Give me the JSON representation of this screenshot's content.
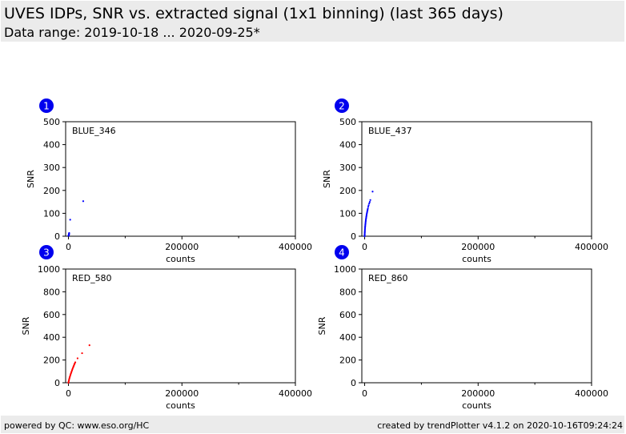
{
  "header": {
    "title": "UVES IDPs, SNR vs. extracted signal (1x1 binning) (last 365 days)",
    "subtitle": "Data range: 2019-10-18 ... 2020-09-25*"
  },
  "footer": {
    "left": "powered by QC: www.eso.org/HC",
    "right": "created by trendPlotter v4.1.2 on 2020-10-16T09:24:24"
  },
  "chart_data": [
    {
      "type": "scatter",
      "badge": "1",
      "label": "BLUE_346",
      "xlabel": "counts",
      "ylabel": "SNR",
      "xlim": [
        -5000,
        400000
      ],
      "ylim": [
        0,
        500
      ],
      "xticks": [
        0,
        200000,
        400000
      ],
      "xtick_labels": [
        "0",
        "200000",
        "400000"
      ],
      "yticks": [
        0,
        100,
        200,
        300,
        400,
        500
      ],
      "ytick_labels": [
        "0",
        "100",
        "200",
        "300",
        "400",
        "500"
      ],
      "color": "#0000ff",
      "points": [
        [
          0,
          2
        ],
        [
          300,
          4
        ],
        [
          500,
          6
        ],
        [
          700,
          8
        ],
        [
          900,
          10
        ],
        [
          1000,
          12
        ],
        [
          1200,
          14
        ],
        [
          1100,
          9
        ],
        [
          800,
          5
        ],
        [
          3000,
          72
        ],
        [
          26000,
          153
        ]
      ]
    },
    {
      "type": "scatter",
      "badge": "2",
      "label": "BLUE_437",
      "xlabel": "counts",
      "ylabel": "SNR",
      "xlim": [
        -5000,
        400000
      ],
      "ylim": [
        0,
        500
      ],
      "xticks": [
        0,
        200000,
        400000
      ],
      "xtick_labels": [
        "0",
        "200000",
        "400000"
      ],
      "yticks": [
        0,
        100,
        200,
        300,
        400,
        500
      ],
      "ytick_labels": [
        "0",
        "100",
        "200",
        "300",
        "400",
        "500"
      ],
      "color": "#0000ff",
      "points": [
        [
          0,
          0
        ],
        [
          0,
          5
        ],
        [
          100,
          10
        ],
        [
          200,
          15
        ],
        [
          300,
          20
        ],
        [
          400,
          25
        ],
        [
          500,
          30
        ],
        [
          700,
          35
        ],
        [
          800,
          40
        ],
        [
          1000,
          45
        ],
        [
          1200,
          50
        ],
        [
          1400,
          55
        ],
        [
          1600,
          60
        ],
        [
          1800,
          65
        ],
        [
          2000,
          70
        ],
        [
          2300,
          75
        ],
        [
          2600,
          80
        ],
        [
          2900,
          85
        ],
        [
          3200,
          90
        ],
        [
          3500,
          95
        ],
        [
          3900,
          100
        ],
        [
          4300,
          105
        ],
        [
          4700,
          110
        ],
        [
          5100,
          115
        ],
        [
          5600,
          120
        ],
        [
          6200,
          128
        ],
        [
          7000,
          135
        ],
        [
          8000,
          143
        ],
        [
          9000,
          150
        ],
        [
          10000,
          158
        ],
        [
          14000,
          195
        ]
      ]
    },
    {
      "type": "scatter",
      "badge": "3",
      "label": "RED_580",
      "xlabel": "counts",
      "ylabel": "SNR",
      "xlim": [
        -5000,
        400000
      ],
      "ylim": [
        0,
        1000
      ],
      "xticks": [
        0,
        200000,
        400000
      ],
      "xtick_labels": [
        "0",
        "200000",
        "400000"
      ],
      "yticks": [
        0,
        200,
        400,
        600,
        800,
        1000
      ],
      "ytick_labels": [
        "0",
        "200",
        "400",
        "600",
        "800",
        "1000"
      ],
      "color": "#ff0000",
      "points": [
        [
          0,
          0
        ],
        [
          300,
          10
        ],
        [
          700,
          20
        ],
        [
          1200,
          30
        ],
        [
          1700,
          40
        ],
        [
          2300,
          50
        ],
        [
          2900,
          60
        ],
        [
          3500,
          70
        ],
        [
          4200,
          80
        ],
        [
          4900,
          90
        ],
        [
          5600,
          100
        ],
        [
          6300,
          110
        ],
        [
          7000,
          120
        ],
        [
          7800,
          130
        ],
        [
          8600,
          140
        ],
        [
          9400,
          150
        ],
        [
          10200,
          160
        ],
        [
          11000,
          170
        ],
        [
          12000,
          180
        ],
        [
          16000,
          215
        ],
        [
          24000,
          260
        ],
        [
          37000,
          330
        ]
      ]
    },
    {
      "type": "scatter",
      "badge": "4",
      "label": "RED_860",
      "xlabel": "counts",
      "ylabel": "SNR",
      "xlim": [
        -5000,
        400000
      ],
      "ylim": [
        0,
        1000
      ],
      "xticks": [
        0,
        200000,
        400000
      ],
      "xtick_labels": [
        "0",
        "200000",
        "400000"
      ],
      "yticks": [
        0,
        200,
        400,
        600,
        800,
        1000
      ],
      "ytick_labels": [
        "0",
        "200",
        "400",
        "600",
        "800",
        "1000"
      ],
      "color": "#ff0000",
      "points": []
    }
  ]
}
